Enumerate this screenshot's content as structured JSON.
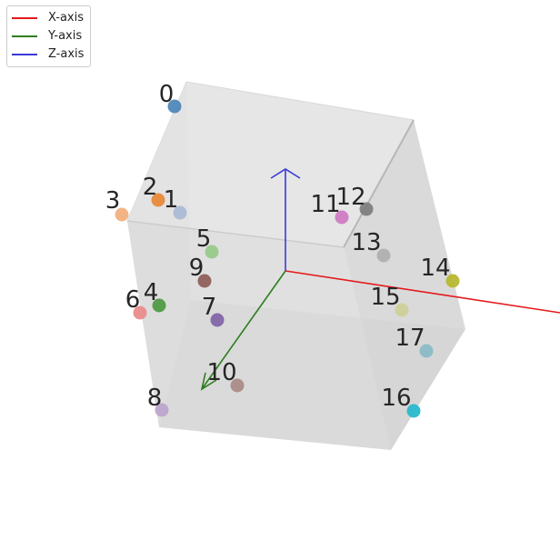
{
  "legend": {
    "items": [
      {
        "label": "X-axis",
        "color": "#e41a1c"
      },
      {
        "label": "Y-axis",
        "color": "#2e7d1f"
      },
      {
        "label": "Z-axis",
        "color": "#3a3ad6"
      }
    ]
  },
  "points": [
    {
      "label": "0",
      "color": "#4f87b8"
    },
    {
      "label": "1",
      "color": "#aabbd6"
    },
    {
      "label": "2",
      "color": "#e8893a"
    },
    {
      "label": "3",
      "color": "#f2b07e"
    },
    {
      "label": "4",
      "color": "#4f9a43"
    },
    {
      "label": "5",
      "color": "#98c98b"
    },
    {
      "label": "6",
      "color": "#e98c8c"
    },
    {
      "label": "7",
      "color": "#8266a8"
    },
    {
      "label": "8",
      "color": "#bba7cc"
    },
    {
      "label": "9",
      "color": "#8f5f58"
    },
    {
      "label": "10",
      "color": "#ab8c88"
    },
    {
      "label": "11",
      "color": "#d07cc3"
    },
    {
      "label": "12",
      "color": "#808080"
    },
    {
      "label": "13",
      "color": "#b0b0b0"
    },
    {
      "label": "14",
      "color": "#b7b831"
    },
    {
      "label": "15",
      "color": "#cfd19a"
    },
    {
      "label": "16",
      "color": "#29b8cc"
    },
    {
      "label": "17",
      "color": "#8bbcc6"
    }
  ]
}
